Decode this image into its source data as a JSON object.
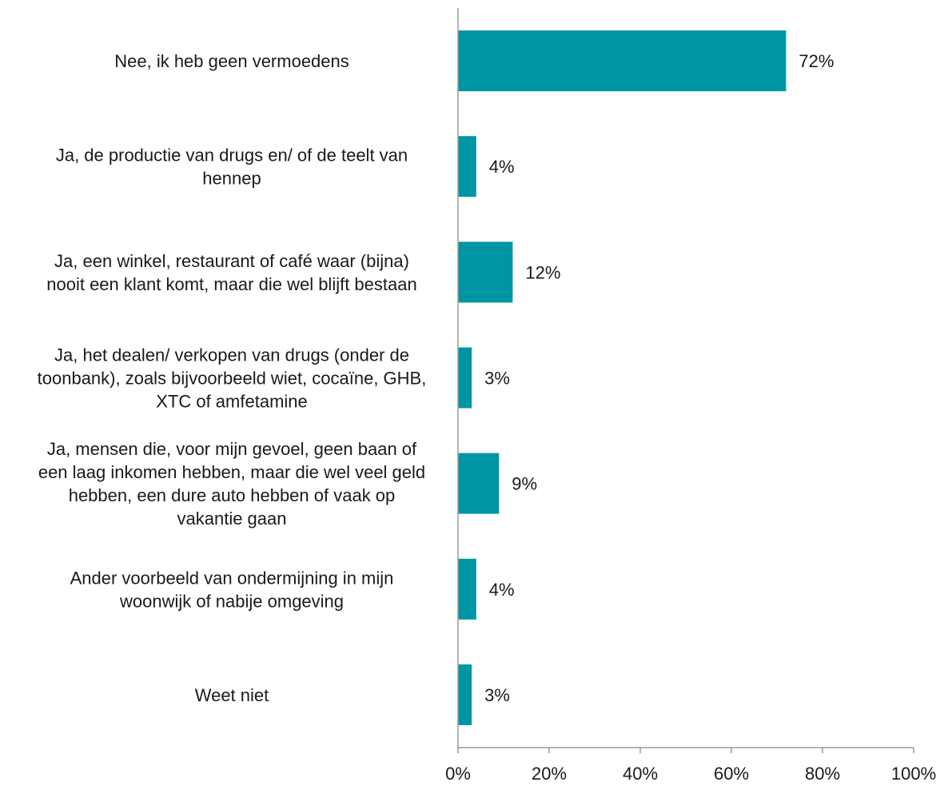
{
  "chart_data": {
    "type": "bar",
    "orientation": "horizontal",
    "categories": [
      [
        "Nee, ik heb geen vermoedens"
      ],
      [
        "Ja, de productie van drugs en/ of de teelt van",
        "hennep"
      ],
      [
        "Ja, een winkel, restaurant of café waar (bijna)",
        "nooit een klant komt, maar die wel blijft bestaan"
      ],
      [
        "Ja, het dealen/ verkopen van drugs (onder de",
        "toonbank), zoals bijvoorbeeld wiet, cocaïne, GHB,",
        "XTC of amfetamine"
      ],
      [
        "Ja, mensen die, voor mijn gevoel, geen baan of",
        "een laag inkomen hebben, maar die wel veel geld",
        "hebben, een dure auto hebben of vaak op",
        "vakantie gaan"
      ],
      [
        "Ander voorbeeld van ondermijning in mijn",
        "woonwijk of nabije omgeving"
      ],
      [
        "Weet niet"
      ]
    ],
    "values": [
      72,
      4,
      12,
      3,
      9,
      4,
      3
    ],
    "value_labels": [
      "72%",
      "4%",
      "12%",
      "3%",
      "9%",
      "4%",
      "3%"
    ],
    "xlim": [
      0,
      100
    ],
    "xticks": [
      0,
      20,
      40,
      60,
      80,
      100
    ],
    "xtick_labels": [
      "0%",
      "20%",
      "40%",
      "60%",
      "80%",
      "100%"
    ],
    "title": "",
    "xlabel": "",
    "ylabel": "",
    "grid": false,
    "legend": "none",
    "colors": {
      "bar": "#0095A3",
      "axis": "#9a9a9a",
      "text": "#1a1a1a"
    }
  }
}
